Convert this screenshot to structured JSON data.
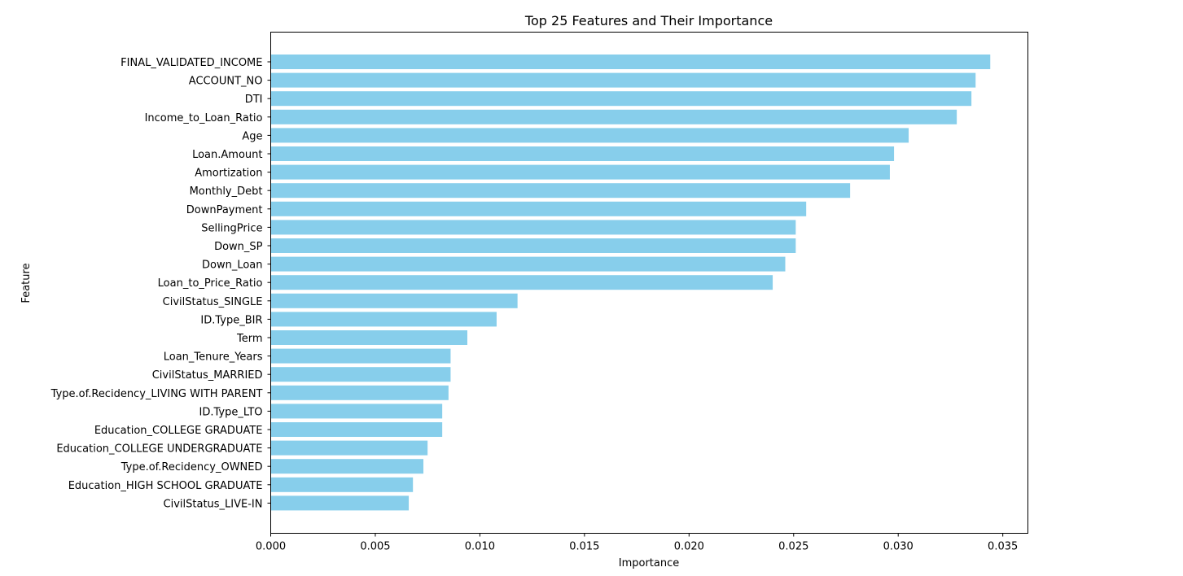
{
  "chart_data": {
    "type": "bar",
    "orientation": "horizontal",
    "title": "Top 25 Features and Their Importance",
    "xlabel": "Importance",
    "ylabel": "Feature",
    "xlim": [
      0,
      0.0362
    ],
    "xticks": [
      "0.000",
      "0.005",
      "0.010",
      "0.015",
      "0.020",
      "0.025",
      "0.030",
      "0.035"
    ],
    "bar_color": "#87ceeb",
    "grid": false,
    "categories": [
      "FINAL_VALIDATED_INCOME",
      "ACCOUNT_NO",
      "DTI",
      "Income_to_Loan_Ratio",
      "Age",
      "Loan.Amount",
      "Amortization",
      "Monthly_Debt",
      "DownPayment",
      "SellingPrice",
      "Down_SP",
      "Down_Loan",
      "Loan_to_Price_Ratio",
      "CivilStatus_SINGLE",
      "ID.Type_BIR",
      "Term",
      "Loan_Tenure_Years",
      "CivilStatus_MARRIED",
      "Type.of.Recidency_LIVING WITH PARENT",
      "ID.Type_LTO",
      "Education_COLLEGE GRADUATE",
      "Education_COLLEGE UNDERGRADUATE",
      "Type.of.Recidency_OWNED",
      "Education_HIGH SCHOOL GRADUATE",
      "CivilStatus_LIVE-IN"
    ],
    "values": [
      0.0344,
      0.0337,
      0.0335,
      0.0328,
      0.0305,
      0.0298,
      0.0296,
      0.0277,
      0.0256,
      0.0251,
      0.0251,
      0.0246,
      0.024,
      0.0118,
      0.0108,
      0.0094,
      0.0086,
      0.0086,
      0.0085,
      0.0082,
      0.0082,
      0.0075,
      0.0073,
      0.0068,
      0.0066
    ]
  }
}
